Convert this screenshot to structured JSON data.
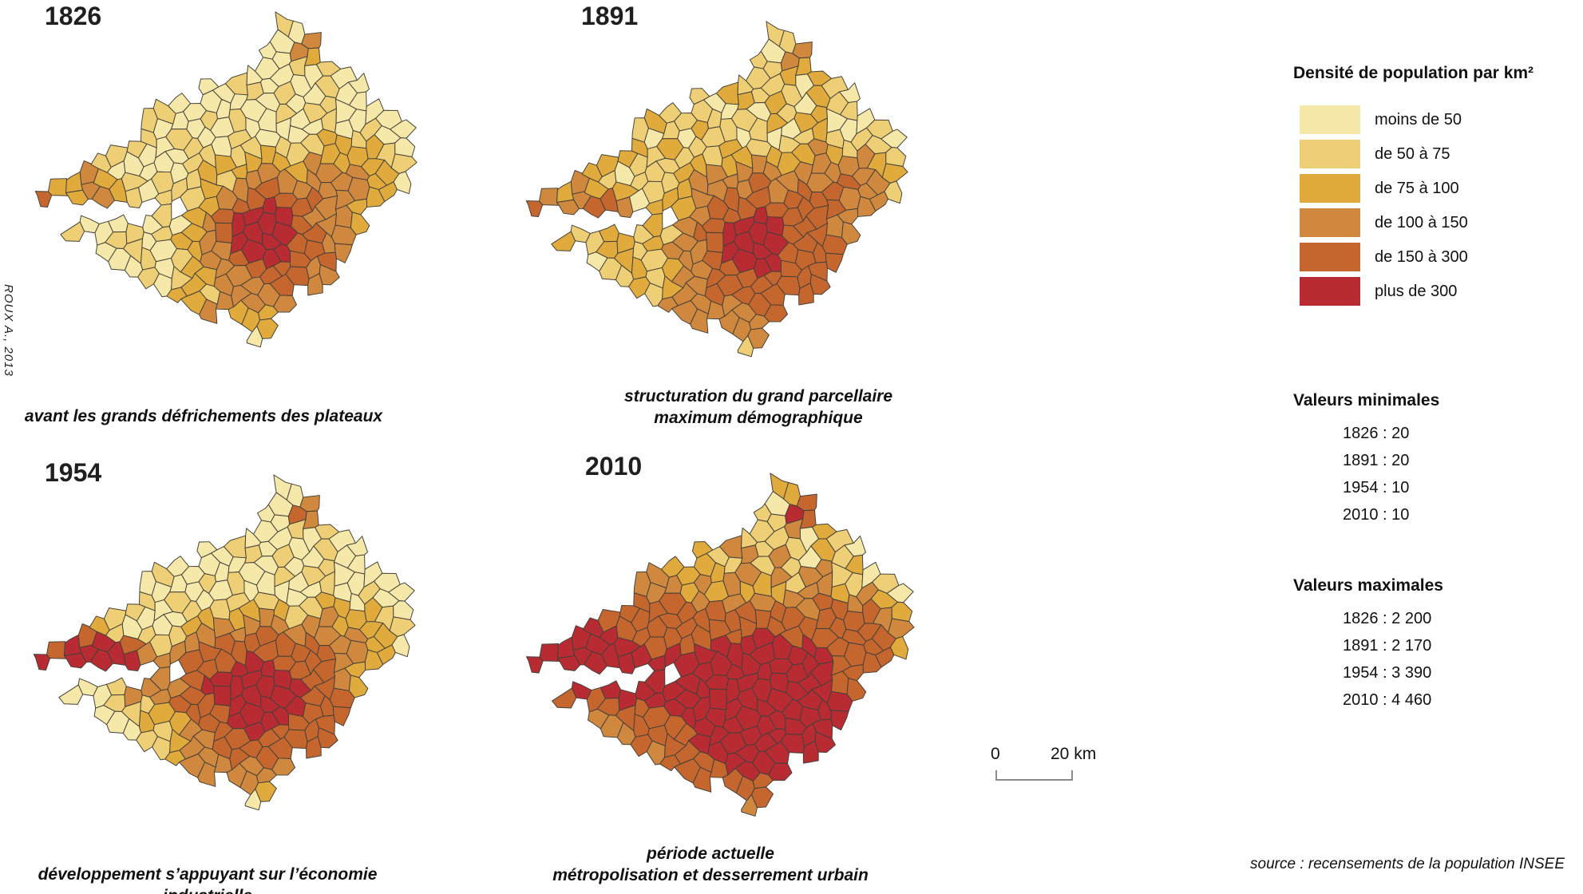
{
  "figure": {
    "credit": "ROUX A., 2013",
    "source": "source : recensements de la population INSEE"
  },
  "legend": {
    "title": "Densité de population par km²",
    "classes": [
      {
        "label": "moins de 50",
        "color": "#F6E8A9",
        "min": null,
        "max": 50
      },
      {
        "label": "de 50 à 75",
        "color": "#EFCF76",
        "min": 50,
        "max": 75
      },
      {
        "label": "de 75 à 100",
        "color": "#E0AB3C",
        "min": 75,
        "max": 100
      },
      {
        "label": "de 100 à 150",
        "color": "#D0883F",
        "min": 100,
        "max": 150
      },
      {
        "label": "de 150 à 300",
        "color": "#C6662F",
        "min": 150,
        "max": 300
      },
      {
        "label": "plus de 300",
        "color": "#B82B33",
        "min": 300,
        "max": null
      }
    ],
    "border_color": "#42403a"
  },
  "stats": {
    "min_title": "Valeurs minimales",
    "min_items": [
      "1826 : 20",
      "1891 : 20",
      "1954 : 10",
      "2010 : 10"
    ],
    "max_title": "Valeurs maximales",
    "max_items": [
      "1826 : 2 200",
      "1891 : 2 170",
      "1954 : 3 390",
      "2010 : 4 460"
    ]
  },
  "scalebar": {
    "zero": "0",
    "label": "20 km"
  },
  "maps": [
    {
      "year": "1826",
      "caption_lines": [
        "avant les grands défrichements des plateaux"
      ]
    },
    {
      "year": "1891",
      "caption_lines": [
        "structuration du grand parcellaire",
        "maximum démographique"
      ]
    },
    {
      "year": "1954",
      "caption_lines": [
        "développement s’appuyant sur l’économie industrielle"
      ]
    },
    {
      "year": "2010",
      "caption_lines": [
        "période actuelle",
        "métropolisation et desserrement urbain"
      ]
    }
  ],
  "chart_data": {
    "type": "choropleth",
    "title": "Densité de population par km²",
    "years": [
      "1826",
      "1891",
      "1954",
      "2010"
    ],
    "classes": [
      "moins de 50",
      "de 50 à 75",
      "de 75 à 100",
      "de 100 à 150",
      "de 150 à 300",
      "plus de 300"
    ],
    "class_colors": [
      "#F6E8A9",
      "#EFCF76",
      "#E0AB3C",
      "#D0883F",
      "#C6662F",
      "#B82B33"
    ],
    "class_bounds": [
      0,
      50,
      75,
      100,
      150,
      300
    ],
    "min_values": {
      "1826": 20,
      "1891": 20,
      "1954": 10,
      "2010": 10
    },
    "max_values": {
      "1826": 2200,
      "1891": 2170,
      "1954": 3390,
      "2010": 4460
    },
    "captions": {
      "1826": "avant les grands défrichements des plateaux",
      "1891": "structuration du grand parcellaire — maximum démographique",
      "1954": "développement s’appuyant sur l’économie industrielle",
      "2010": "période actuelle — métropolisation et desserrement urbain"
    },
    "scale_km": 20,
    "source": "recensements de la population INSEE",
    "author": "ROUX A., 2013",
    "outline": [
      [
        14,
        230
      ],
      [
        38,
        214
      ],
      [
        66,
        198
      ],
      [
        92,
        198
      ],
      [
        118,
        184
      ],
      [
        132,
        162
      ],
      [
        152,
        150
      ],
      [
        148,
        124
      ],
      [
        172,
        128
      ],
      [
        192,
        108
      ],
      [
        222,
        112
      ],
      [
        248,
        88
      ],
      [
        278,
        92
      ],
      [
        298,
        68
      ],
      [
        312,
        38
      ],
      [
        334,
        14
      ],
      [
        364,
        8
      ],
      [
        386,
        28
      ],
      [
        380,
        54
      ],
      [
        398,
        68
      ],
      [
        424,
        62
      ],
      [
        430,
        88
      ],
      [
        454,
        98
      ],
      [
        450,
        118
      ],
      [
        478,
        128
      ],
      [
        504,
        142
      ],
      [
        494,
        168
      ],
      [
        514,
        192
      ],
      [
        504,
        214
      ],
      [
        514,
        232
      ],
      [
        490,
        244
      ],
      [
        468,
        238
      ],
      [
        444,
        258
      ],
      [
        450,
        284
      ],
      [
        426,
        298
      ],
      [
        432,
        322
      ],
      [
        402,
        338
      ],
      [
        392,
        362
      ],
      [
        362,
        358
      ],
      [
        346,
        388
      ],
      [
        330,
        394
      ],
      [
        326,
        424
      ],
      [
        304,
        444
      ],
      [
        284,
        428
      ],
      [
        290,
        398
      ],
      [
        268,
        388
      ],
      [
        244,
        398
      ],
      [
        228,
        378
      ],
      [
        200,
        384
      ],
      [
        184,
        358
      ],
      [
        150,
        354
      ],
      [
        138,
        328
      ],
      [
        108,
        324
      ],
      [
        88,
        298
      ],
      [
        64,
        292
      ],
      [
        52,
        272
      ],
      [
        78,
        266
      ],
      [
        112,
        270
      ],
      [
        148,
        268
      ],
      [
        182,
        262
      ],
      [
        210,
        254
      ],
      [
        222,
        248
      ],
      [
        176,
        244
      ],
      [
        140,
        245
      ],
      [
        104,
        245
      ],
      [
        80,
        242
      ],
      [
        56,
        246
      ],
      [
        30,
        246
      ],
      [
        14,
        238
      ]
    ],
    "pattern_model": {
      "1826": {
        "base": 40,
        "noise": 24,
        "spots": [
          [
            310,
            285,
            2200,
            16
          ],
          [
            310,
            285,
            170,
            55
          ],
          [
            380,
            330,
            70,
            60
          ],
          [
            430,
            215,
            70,
            35
          ],
          [
            368,
            52,
            90,
            12
          ],
          [
            20,
            238,
            400,
            6
          ],
          [
            95,
            232,
            40,
            22
          ],
          [
            60,
            225,
            45,
            40
          ],
          [
            230,
            390,
            30,
            50
          ]
        ]
      },
      "1891": {
        "base": 58,
        "noise": 24,
        "spots": [
          [
            310,
            285,
            2170,
            16
          ],
          [
            310,
            285,
            190,
            58
          ],
          [
            380,
            330,
            75,
            60
          ],
          [
            430,
            215,
            75,
            35
          ],
          [
            368,
            52,
            100,
            12
          ],
          [
            20,
            238,
            420,
            6
          ],
          [
            120,
            250,
            420,
            13
          ],
          [
            60,
            225,
            55,
            40
          ],
          [
            230,
            390,
            30,
            50
          ]
        ]
      },
      "1954": {
        "base": 34,
        "noise": 26,
        "spots": [
          [
            310,
            285,
            3390,
            18
          ],
          [
            310,
            285,
            260,
            60
          ],
          [
            240,
            270,
            140,
            35
          ],
          [
            380,
            330,
            80,
            55
          ],
          [
            430,
            215,
            70,
            35
          ],
          [
            368,
            52,
            260,
            10
          ],
          [
            20,
            238,
            500,
            7
          ],
          [
            95,
            235,
            800,
            16
          ],
          [
            140,
            240,
            400,
            14
          ],
          [
            55,
            228,
            250,
            20
          ],
          [
            150,
            262,
            120,
            20
          ],
          [
            230,
            390,
            45,
            45
          ]
        ]
      },
      "2010": {
        "base": 55,
        "noise": 34,
        "spots": [
          [
            310,
            285,
            4460,
            26
          ],
          [
            310,
            285,
            300,
            60
          ],
          [
            310,
            285,
            100,
            95
          ],
          [
            240,
            270,
            200,
            40
          ],
          [
            380,
            330,
            150,
            60
          ],
          [
            430,
            215,
            130,
            40
          ],
          [
            368,
            52,
            420,
            11
          ],
          [
            20,
            238,
            500,
            7
          ],
          [
            95,
            232,
            1000,
            22
          ],
          [
            60,
            225,
            350,
            40
          ],
          [
            150,
            262,
            200,
            35
          ],
          [
            230,
            390,
            90,
            55
          ],
          [
            170,
            200,
            90,
            50
          ]
        ]
      }
    }
  }
}
